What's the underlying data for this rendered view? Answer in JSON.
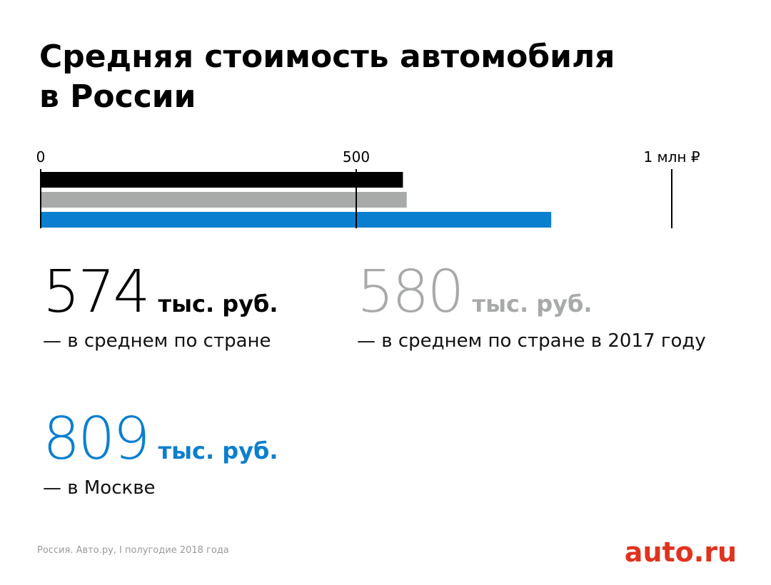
{
  "chart_data": {
    "type": "bar",
    "orientation": "horizontal",
    "title": "Средняя стоимость автомобиля в России",
    "categories": [
      "— в среднем по стране",
      "— в среднем по стране в 2017 году",
      "— в Москве"
    ],
    "values": [
      574,
      580,
      809
    ],
    "colors": [
      "#000000",
      "#a8aaaa",
      "#0a7fcf"
    ],
    "unit": "тыс. руб.",
    "xlim": [
      0,
      1000
    ],
    "xticks": [
      0,
      500,
      {
        "value": 1000,
        "label": "1 млн ₽"
      }
    ],
    "source": "Россия. Авто.ру, I полугодие 2018 года",
    "logo": "auto.ru"
  }
}
